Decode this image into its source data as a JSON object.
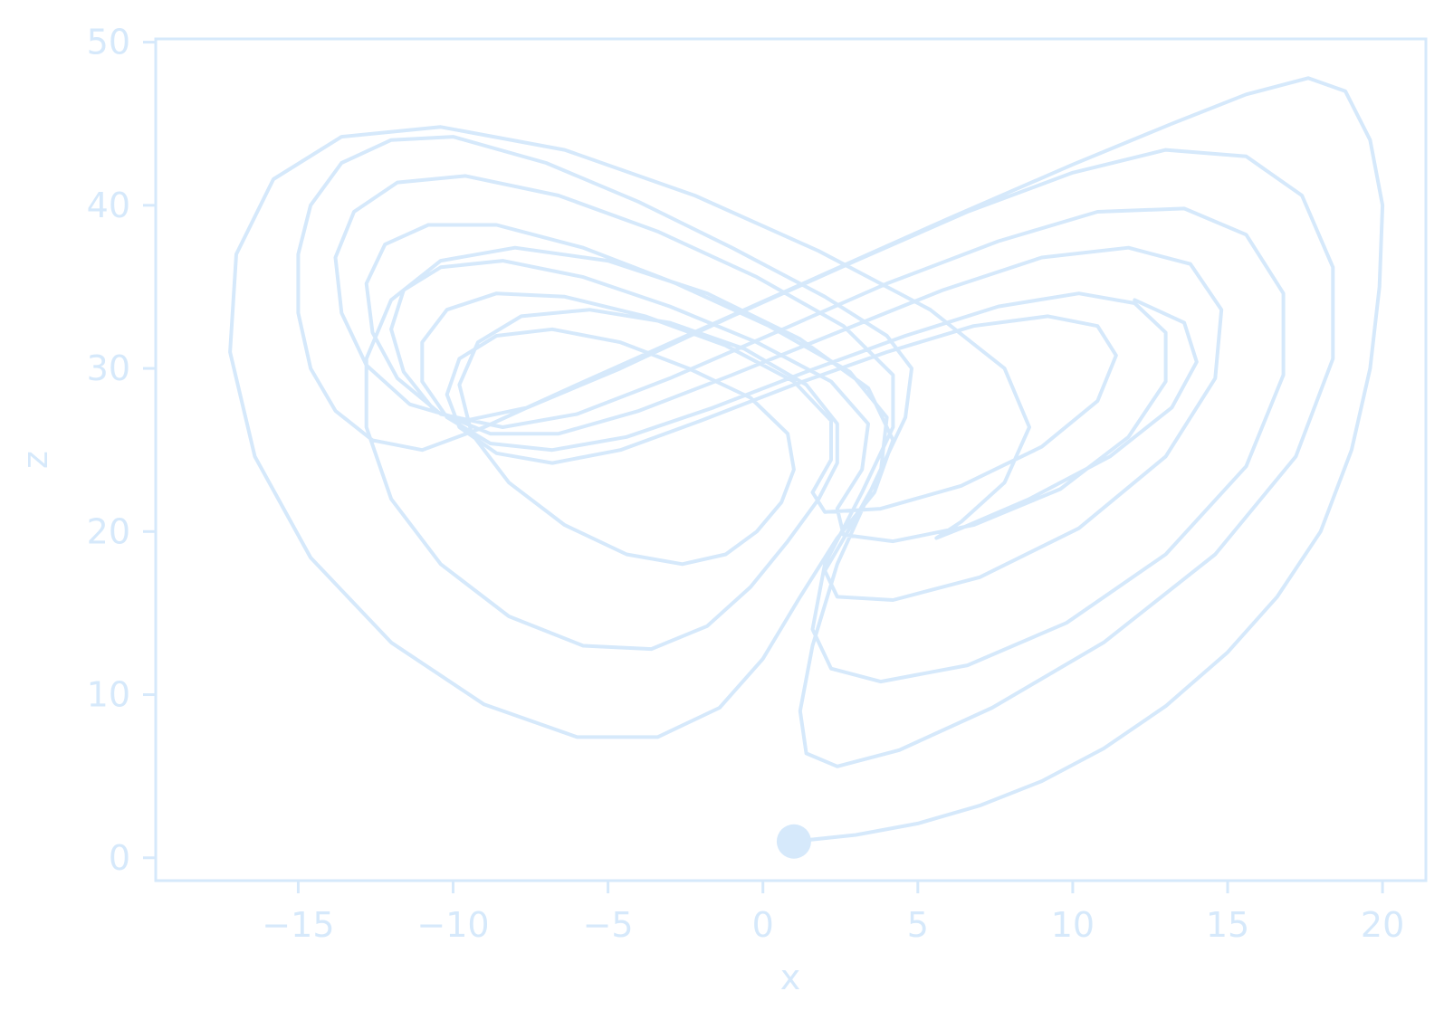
{
  "chart_data": {
    "type": "line",
    "title": "",
    "xlabel": "x",
    "ylabel": "z",
    "xlim": [
      -19.6,
      21.4
    ],
    "ylim": [
      -1.4,
      50.2
    ],
    "xticks": [
      -15,
      -10,
      -5,
      0,
      5,
      10,
      15,
      20
    ],
    "yticks": [
      0,
      10,
      20,
      30,
      40,
      50
    ],
    "xtick_labels": [
      "−15",
      "−10",
      "−5",
      "0",
      "5",
      "10",
      "15",
      "20"
    ],
    "ytick_labels": [
      "0",
      "10",
      "20",
      "30",
      "40",
      "50"
    ],
    "grid": false,
    "legend": "none",
    "color": "#d6e9fb",
    "series": [
      {
        "type": "line",
        "description_source": "Lorenz trajectory approximated by hand-read points",
        "points": [
          [
            1.0,
            1.0
          ],
          [
            3.0,
            1.4
          ],
          [
            5.0,
            2.1
          ],
          [
            7.0,
            3.2
          ],
          [
            9.0,
            4.7
          ],
          [
            11.0,
            6.7
          ],
          [
            13.0,
            9.3
          ],
          [
            15.0,
            12.6
          ],
          [
            16.6,
            16.0
          ],
          [
            18.0,
            20.0
          ],
          [
            19.0,
            25.0
          ],
          [
            19.6,
            30.0
          ],
          [
            19.9,
            35.0
          ],
          [
            20.0,
            40.0
          ],
          [
            19.6,
            44.0
          ],
          [
            18.8,
            47.0
          ],
          [
            17.6,
            47.8
          ],
          [
            15.6,
            46.8
          ],
          [
            13.2,
            45.0
          ],
          [
            10.0,
            42.5
          ],
          [
            6.0,
            39.2
          ],
          [
            2.0,
            35.8
          ],
          [
            -2.0,
            32.4
          ],
          [
            -6.0,
            29.0
          ],
          [
            -9.0,
            26.4
          ],
          [
            -11.0,
            25.0
          ],
          [
            -12.6,
            25.6
          ],
          [
            -13.8,
            27.4
          ],
          [
            -14.6,
            30.0
          ],
          [
            -15.0,
            33.4
          ],
          [
            -15.0,
            37.0
          ],
          [
            -14.6,
            40.0
          ],
          [
            -13.6,
            42.6
          ],
          [
            -12.0,
            44.0
          ],
          [
            -10.0,
            44.2
          ],
          [
            -7.0,
            42.6
          ],
          [
            -4.0,
            40.2
          ],
          [
            -1.0,
            37.4
          ],
          [
            2.0,
            34.4
          ],
          [
            4.0,
            32.0
          ],
          [
            4.8,
            30.0
          ],
          [
            4.6,
            27.0
          ],
          [
            3.6,
            23.0
          ],
          [
            2.4,
            18.0
          ],
          [
            1.6,
            13.0
          ],
          [
            1.2,
            9.0
          ],
          [
            1.4,
            6.4
          ],
          [
            2.4,
            5.6
          ],
          [
            4.4,
            6.6
          ],
          [
            7.4,
            9.2
          ],
          [
            11.0,
            13.2
          ],
          [
            14.6,
            18.6
          ],
          [
            17.2,
            24.6
          ],
          [
            18.4,
            30.6
          ],
          [
            18.4,
            36.2
          ],
          [
            17.4,
            40.6
          ],
          [
            15.6,
            43.0
          ],
          [
            13.0,
            43.4
          ],
          [
            10.0,
            42.0
          ],
          [
            6.6,
            39.6
          ],
          [
            3.0,
            36.6
          ],
          [
            -1.0,
            33.2
          ],
          [
            -4.6,
            30.0
          ],
          [
            -7.6,
            27.6
          ],
          [
            -9.6,
            26.8
          ],
          [
            -11.4,
            27.8
          ],
          [
            -12.8,
            30.2
          ],
          [
            -13.6,
            33.4
          ],
          [
            -13.8,
            36.8
          ],
          [
            -13.2,
            39.6
          ],
          [
            -11.8,
            41.4
          ],
          [
            -9.6,
            41.8
          ],
          [
            -6.6,
            40.6
          ],
          [
            -3.4,
            38.4
          ],
          [
            -0.2,
            35.6
          ],
          [
            2.6,
            32.6
          ],
          [
            4.2,
            29.6
          ],
          [
            4.2,
            26.4
          ],
          [
            3.2,
            22.4
          ],
          [
            2.0,
            18.0
          ],
          [
            1.6,
            14.0
          ],
          [
            2.2,
            11.6
          ],
          [
            3.8,
            10.8
          ],
          [
            6.6,
            11.8
          ],
          [
            9.8,
            14.4
          ],
          [
            13.0,
            18.6
          ],
          [
            15.6,
            24.0
          ],
          [
            16.8,
            29.6
          ],
          [
            16.8,
            34.6
          ],
          [
            15.6,
            38.2
          ],
          [
            13.6,
            39.8
          ],
          [
            10.8,
            39.6
          ],
          [
            7.6,
            37.8
          ],
          [
            4.0,
            35.2
          ],
          [
            0.4,
            32.2
          ],
          [
            -3.0,
            29.4
          ],
          [
            -6.0,
            27.2
          ],
          [
            -8.4,
            26.4
          ],
          [
            -10.4,
            27.2
          ],
          [
            -11.8,
            29.4
          ],
          [
            -12.6,
            32.2
          ],
          [
            -12.8,
            35.2
          ],
          [
            -12.2,
            37.6
          ],
          [
            -10.8,
            38.8
          ],
          [
            -8.6,
            38.8
          ],
          [
            -5.8,
            37.4
          ],
          [
            -2.8,
            35.2
          ],
          [
            0.2,
            32.6
          ],
          [
            2.8,
            29.8
          ],
          [
            4.0,
            27.0
          ],
          [
            3.8,
            23.6
          ],
          [
            2.8,
            20.2
          ],
          [
            2.0,
            17.6
          ],
          [
            2.4,
            16.0
          ],
          [
            4.2,
            15.8
          ],
          [
            7.0,
            17.2
          ],
          [
            10.2,
            20.2
          ],
          [
            13.0,
            24.6
          ],
          [
            14.6,
            29.4
          ],
          [
            14.8,
            33.6
          ],
          [
            13.8,
            36.4
          ],
          [
            11.8,
            37.4
          ],
          [
            9.0,
            36.8
          ],
          [
            5.8,
            34.8
          ],
          [
            2.4,
            32.2
          ],
          [
            -1.0,
            29.6
          ],
          [
            -4.0,
            27.4
          ],
          [
            -6.6,
            26.0
          ],
          [
            -8.8,
            26.0
          ],
          [
            -10.6,
            27.4
          ],
          [
            -11.6,
            29.8
          ],
          [
            -12.0,
            32.4
          ],
          [
            -11.6,
            34.8
          ],
          [
            -10.4,
            36.2
          ],
          [
            -8.4,
            36.6
          ],
          [
            -5.8,
            35.6
          ],
          [
            -3.0,
            33.8
          ],
          [
            -0.2,
            31.6
          ],
          [
            2.2,
            29.2
          ],
          [
            3.4,
            26.6
          ],
          [
            3.2,
            23.8
          ],
          [
            2.4,
            21.4
          ],
          [
            2.6,
            19.8
          ],
          [
            4.2,
            19.4
          ],
          [
            6.8,
            20.4
          ],
          [
            9.6,
            22.6
          ],
          [
            11.8,
            25.8
          ],
          [
            13.0,
            29.2
          ],
          [
            13.0,
            32.2
          ],
          [
            12.0,
            34.0
          ],
          [
            10.2,
            34.6
          ],
          [
            7.6,
            33.8
          ],
          [
            4.6,
            32.0
          ],
          [
            1.4,
            29.8
          ],
          [
            -1.6,
            27.6
          ],
          [
            -4.4,
            25.8
          ],
          [
            -6.8,
            25.0
          ],
          [
            -8.8,
            25.4
          ],
          [
            -10.2,
            27.0
          ],
          [
            -11.0,
            29.2
          ],
          [
            -11.0,
            31.6
          ],
          [
            -10.2,
            33.6
          ],
          [
            -8.6,
            34.6
          ],
          [
            -6.4,
            34.4
          ],
          [
            -3.8,
            33.2
          ],
          [
            -1.2,
            31.4
          ],
          [
            1.0,
            29.2
          ],
          [
            2.2,
            26.8
          ],
          [
            2.2,
            24.4
          ],
          [
            1.6,
            22.4
          ],
          [
            2.0,
            21.2
          ],
          [
            3.8,
            21.4
          ],
          [
            6.4,
            22.8
          ],
          [
            9.0,
            25.2
          ],
          [
            10.8,
            28.0
          ],
          [
            11.4,
            30.8
          ],
          [
            10.8,
            32.6
          ],
          [
            9.2,
            33.2
          ],
          [
            6.8,
            32.6
          ],
          [
            4.0,
            31.0
          ],
          [
            1.0,
            29.0
          ],
          [
            -2.0,
            26.8
          ],
          [
            -4.6,
            25.0
          ],
          [
            -6.8,
            24.2
          ],
          [
            -8.6,
            24.8
          ],
          [
            -9.8,
            26.4
          ],
          [
            -10.2,
            28.4
          ],
          [
            -9.8,
            30.6
          ],
          [
            -8.6,
            32.0
          ],
          [
            -6.8,
            32.4
          ],
          [
            -4.6,
            31.6
          ],
          [
            -2.4,
            30.0
          ],
          [
            -0.4,
            28.2
          ],
          [
            0.8,
            26.0
          ],
          [
            1.0,
            23.8
          ],
          [
            0.6,
            21.8
          ],
          [
            -0.2,
            20.0
          ],
          [
            -1.2,
            18.6
          ],
          [
            -2.6,
            18.0
          ],
          [
            -4.4,
            18.6
          ],
          [
            -6.4,
            20.4
          ],
          [
            -8.2,
            23.0
          ],
          [
            -9.4,
            26.0
          ],
          [
            -9.8,
            29.0
          ],
          [
            -9.2,
            31.6
          ],
          [
            -7.8,
            33.2
          ],
          [
            -5.6,
            33.6
          ],
          [
            -3.0,
            32.8
          ],
          [
            -0.6,
            31.2
          ],
          [
            1.4,
            29.0
          ],
          [
            2.4,
            26.6
          ],
          [
            2.4,
            24.2
          ],
          [
            1.8,
            22.0
          ],
          [
            0.8,
            19.4
          ],
          [
            -0.4,
            16.6
          ],
          [
            -1.8,
            14.2
          ],
          [
            -3.6,
            12.8
          ],
          [
            -5.8,
            13.0
          ],
          [
            -8.2,
            14.8
          ],
          [
            -10.4,
            18.0
          ],
          [
            -12.0,
            22.0
          ],
          [
            -12.8,
            26.4
          ],
          [
            -12.8,
            30.6
          ],
          [
            -12.0,
            34.2
          ],
          [
            -10.4,
            36.6
          ],
          [
            -8.0,
            37.4
          ],
          [
            -5.0,
            36.6
          ],
          [
            -1.8,
            34.6
          ],
          [
            1.2,
            31.8
          ],
          [
            3.4,
            28.8
          ],
          [
            4.2,
            25.6
          ],
          [
            3.6,
            22.4
          ],
          [
            2.4,
            19.6
          ],
          [
            1.2,
            16.0
          ],
          [
            0.0,
            12.2
          ],
          [
            -1.4,
            9.2
          ],
          [
            -3.4,
            7.4
          ],
          [
            -6.0,
            7.4
          ],
          [
            -9.0,
            9.4
          ],
          [
            -12.0,
            13.2
          ],
          [
            -14.6,
            18.4
          ],
          [
            -16.4,
            24.6
          ],
          [
            -17.2,
            31.0
          ],
          [
            -17.0,
            37.0
          ],
          [
            -15.8,
            41.6
          ],
          [
            -13.6,
            44.2
          ],
          [
            -10.4,
            44.8
          ],
          [
            -6.4,
            43.4
          ],
          [
            -2.2,
            40.6
          ],
          [
            1.8,
            37.2
          ],
          [
            5.4,
            33.6
          ],
          [
            7.8,
            30.0
          ],
          [
            8.6,
            26.4
          ],
          [
            7.8,
            23.0
          ],
          [
            6.4,
            20.6
          ],
          [
            5.6,
            19.6
          ],
          [
            6.4,
            20.2
          ],
          [
            8.6,
            22.0
          ],
          [
            11.2,
            24.6
          ],
          [
            13.2,
            27.6
          ],
          [
            14.0,
            30.4
          ],
          [
            13.6,
            32.8
          ],
          [
            12.0,
            34.2
          ]
        ]
      }
    ],
    "start_marker": {
      "x": 1.0,
      "z": 1.0
    }
  }
}
